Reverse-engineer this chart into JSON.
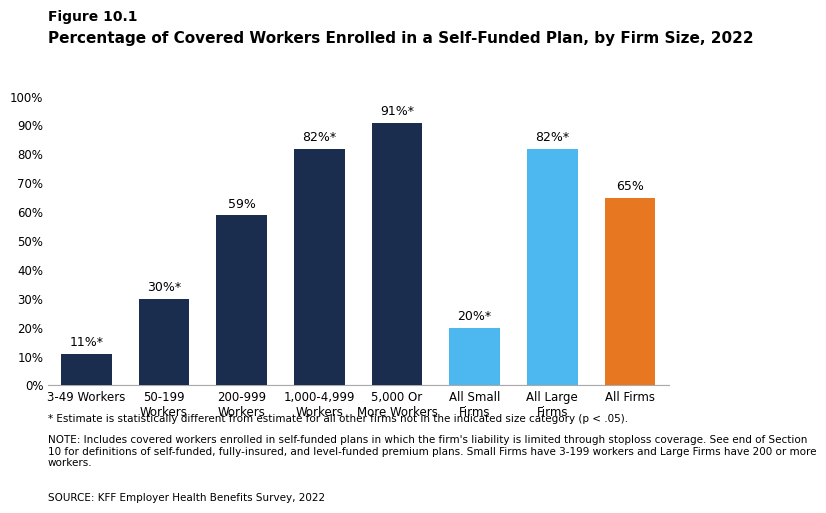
{
  "figure_label": "Figure 10.1",
  "title": "Percentage of Covered Workers Enrolled in a Self-Funded Plan, by Firm Size, 2022",
  "categories": [
    "3-49 Workers",
    "50-199\nWorkers",
    "200-999\nWorkers",
    "1,000-4,999\nWorkers",
    "5,000 Or\nMore Workers",
    "All Small\nFirms",
    "All Large\nFirms",
    "All Firms"
  ],
  "values": [
    11,
    30,
    59,
    82,
    91,
    20,
    82,
    65
  ],
  "labels": [
    "11%*",
    "30%*",
    "59%",
    "82%*",
    "91%*",
    "20%*",
    "82%*",
    "65%"
  ],
  "bar_colors": [
    "#1b2d4f",
    "#1b2d4f",
    "#1b2d4f",
    "#1b2d4f",
    "#1b2d4f",
    "#4db8f0",
    "#4db8f0",
    "#e87722"
  ],
  "ylim": [
    0,
    100
  ],
  "yticks": [
    0,
    10,
    20,
    30,
    40,
    50,
    60,
    70,
    80,
    90,
    100
  ],
  "ytick_labels": [
    "0%",
    "10%",
    "20%",
    "30%",
    "40%",
    "50%",
    "60%",
    "70%",
    "80%",
    "90%",
    "100%"
  ],
  "footnote1": "* Estimate is statistically different from estimate for all other firms not in the indicated size category (p < .05).",
  "footnote2": "NOTE: Includes covered workers enrolled in self-funded plans in which the firm's liability is limited through stoploss coverage. See end of Section\n10 for definitions of self-funded, fully-insured, and level-funded premium plans. Small Firms have 3-199 workers and Large Firms have 200 or more\nworkers.",
  "footnote3": "SOURCE: KFF Employer Health Benefits Survey, 2022",
  "background_color": "#ffffff",
  "bar_edge_color": "none",
  "label_fontsize": 9,
  "tick_fontsize": 8.5,
  "title_fontsize": 11,
  "figure_label_fontsize": 10,
  "footnote_fontsize": 7.5
}
